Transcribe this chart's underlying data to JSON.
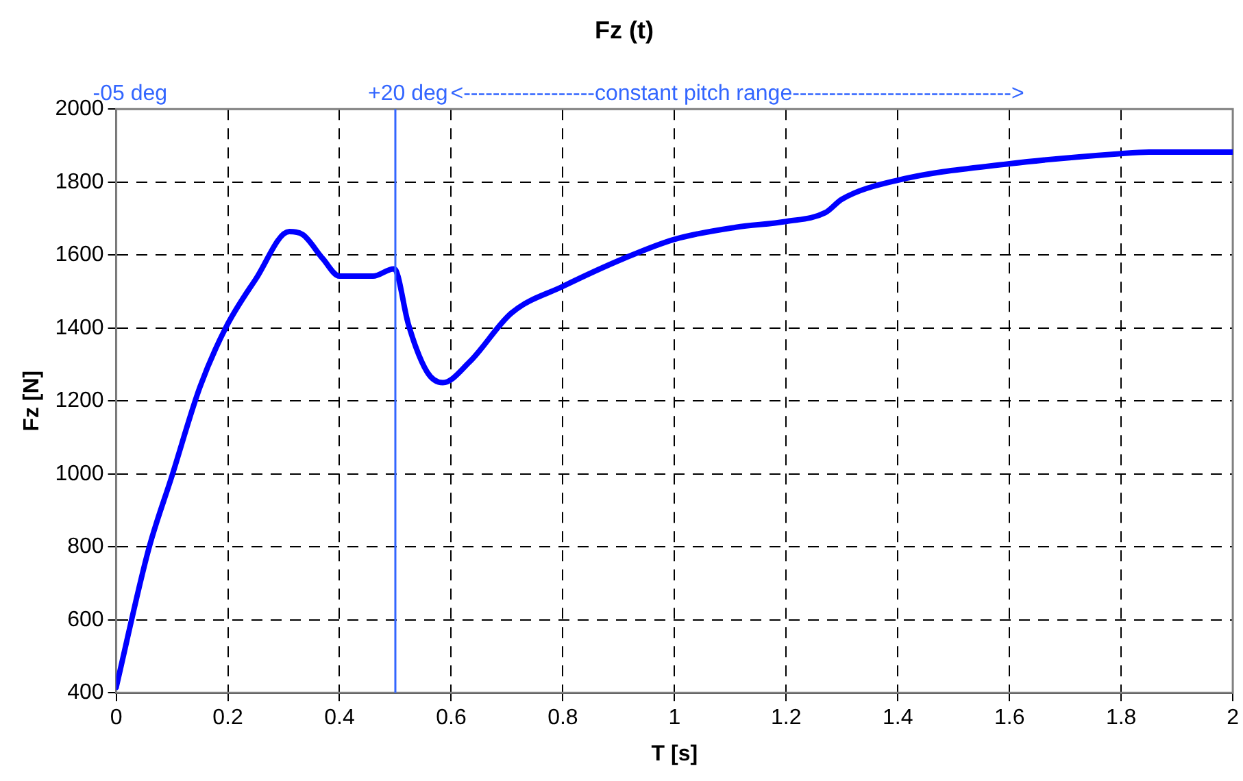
{
  "chart_data": {
    "type": "line",
    "title": "Fz (t)",
    "xlabel": "T [s]",
    "ylabel": "Fz [N]",
    "x": [
      0,
      0.058,
      0.1,
      0.15,
      0.196,
      0.25,
      0.31,
      0.334,
      0.37,
      0.4,
      0.46,
      0.497,
      0.5,
      0.523,
      0.557,
      0.585,
      0.633,
      0.708,
      0.8,
      0.91,
      1.0,
      1.11,
      1.2,
      1.27,
      1.3,
      1.4,
      1.6,
      1.8,
      1.85,
      2.0
    ],
    "series": [
      {
        "color": "#0000ff",
        "values": [
          415,
          793,
          995,
          1238,
          1400,
          1534,
          1664,
          1656,
          1590,
          1542,
          1542,
          1562,
          1560,
          1412,
          1279,
          1250,
          1307,
          1441,
          1514,
          1591,
          1643,
          1676,
          1692,
          1716,
          1753,
          1805,
          1850,
          1878,
          1882,
          1882
        ]
      }
    ],
    "xlim": [
      0,
      2
    ],
    "xticks": [
      0,
      0.2,
      0.4,
      0.6,
      0.8,
      1,
      1.2,
      1.4,
      1.6,
      1.8,
      2
    ],
    "ylim": [
      400,
      2000
    ],
    "yticks": [
      400,
      600,
      800,
      1000,
      1200,
      1400,
      1600,
      1800,
      2000
    ],
    "grid": true,
    "legend": false,
    "marker": "none",
    "line_style": "solid",
    "ref_lines": [
      {
        "axis": "x",
        "value": 0.5,
        "label": "+20 deg",
        "color": "#3366ff"
      }
    ],
    "annotations": [
      "-05 deg",
      "<------------------constant pitch range------------------------------>"
    ]
  }
}
